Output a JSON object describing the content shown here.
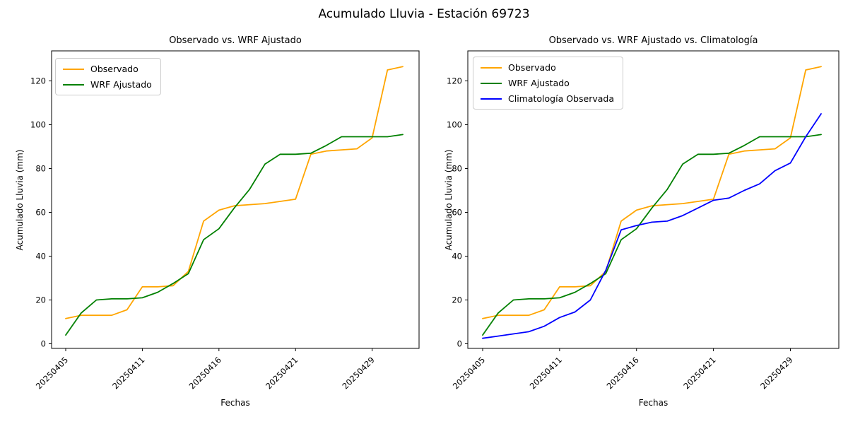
{
  "figure": {
    "suptitle": "Acumulado Lluvia - Estación 69723",
    "background_color": "#ffffff",
    "text_color": "#000000"
  },
  "chart_data": [
    {
      "type": "line",
      "title": "Observado vs. WRF Ajustado",
      "xlabel": "Fechas",
      "ylabel": "Acumulado Lluvia (mm)",
      "x_tick_labels": [
        "20250405",
        "20250411",
        "20250416",
        "20250421",
        "20250429"
      ],
      "x_tick_indices": [
        0,
        5,
        10,
        15,
        20
      ],
      "n_points": 23,
      "yticks": [
        0,
        20,
        40,
        60,
        80,
        100,
        120
      ],
      "ylim": [
        -2.1,
        133.7
      ],
      "grid": false,
      "legend_position": "upper left",
      "series": [
        {
          "name": "Observado",
          "color": "#FFA500",
          "values": [
            11.5,
            13,
            13,
            13,
            15.5,
            26,
            26,
            26.5,
            33,
            56,
            61,
            63,
            63.5,
            64,
            65,
            66,
            86.5,
            88,
            88.5,
            89,
            94,
            125,
            126.5
          ]
        },
        {
          "name": "WRF Ajustado",
          "color": "#008000",
          "values": [
            4,
            14,
            20,
            20.5,
            20.5,
            21,
            23.5,
            27.5,
            32,
            47.5,
            52.5,
            62,
            70.5,
            82,
            86.5,
            86.5,
            87,
            90.5,
            94.5,
            94.5,
            94.5,
            94.5,
            95.5
          ]
        }
      ]
    },
    {
      "type": "line",
      "title": "Observado vs. WRF Ajustado vs. Climatología",
      "xlabel": "Fechas",
      "ylabel": "Acumulado Lluvia (mm)",
      "x_tick_labels": [
        "20250405",
        "20250411",
        "20250416",
        "20250421",
        "20250429"
      ],
      "x_tick_indices": [
        0,
        5,
        10,
        15,
        20
      ],
      "n_points": 23,
      "yticks": [
        0,
        20,
        40,
        60,
        80,
        100,
        120
      ],
      "ylim": [
        -2.1,
        133.7
      ],
      "grid": false,
      "legend_position": "upper left",
      "series": [
        {
          "name": "Observado",
          "color": "#FFA500",
          "values": [
            11.5,
            13,
            13,
            13,
            15.5,
            26,
            26,
            26.5,
            33,
            56,
            61,
            63,
            63.5,
            64,
            65,
            66,
            86.5,
            88,
            88.5,
            89,
            94,
            125,
            126.5
          ]
        },
        {
          "name": "WRF Ajustado",
          "color": "#008000",
          "values": [
            4,
            14,
            20,
            20.5,
            20.5,
            21,
            23.5,
            27.5,
            32,
            47.5,
            52.5,
            62,
            70.5,
            82,
            86.5,
            86.5,
            87,
            90.5,
            94.5,
            94.5,
            94.5,
            94.5,
            95.5
          ]
        },
        {
          "name": "Climatología Observada",
          "color": "#0000FF",
          "values": [
            2.5,
            3.5,
            4.5,
            5.5,
            8,
            12,
            14.5,
            20,
            33.5,
            52,
            54,
            55.5,
            56,
            58.5,
            62,
            65.5,
            66.5,
            70,
            73,
            79,
            82.5,
            94.5,
            105
          ]
        }
      ]
    }
  ]
}
